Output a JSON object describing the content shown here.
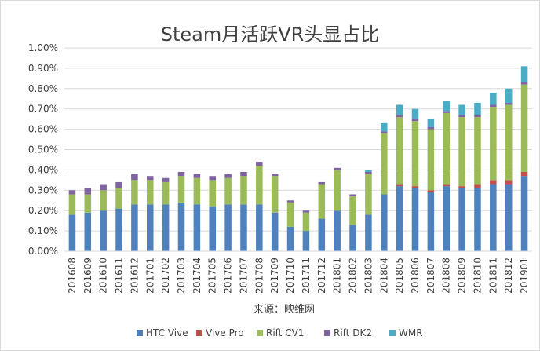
{
  "chart_data": {
    "type": "bar",
    "stacked": true,
    "title": "Steam月活跃VR头显占比",
    "source": "来源：映维网",
    "xlabel": "",
    "ylabel": "",
    "ylim": [
      0,
      1.0
    ],
    "yticks": [
      "0.00%",
      "0.10%",
      "0.20%",
      "0.30%",
      "0.40%",
      "0.50%",
      "0.60%",
      "0.70%",
      "0.80%",
      "0.90%",
      "1.00%"
    ],
    "grid": true,
    "legend_position": "bottom",
    "categories": [
      "201608",
      "201609",
      "201610",
      "201611",
      "201612",
      "201701",
      "201702",
      "201703",
      "201704",
      "201705",
      "201706",
      "201707",
      "201708",
      "201709",
      "201710",
      "201711",
      "201712",
      "201801",
      "201802",
      "201803",
      "201804",
      "201805",
      "201806",
      "201807",
      "201808",
      "201809",
      "201810",
      "201811",
      "201812",
      "201901"
    ],
    "series": [
      {
        "name": "HTC Vive",
        "color": "#4f81bd",
        "values": [
          0.18,
          0.19,
          0.2,
          0.21,
          0.23,
          0.23,
          0.23,
          0.24,
          0.23,
          0.22,
          0.23,
          0.23,
          0.23,
          0.19,
          0.12,
          0.1,
          0.16,
          0.2,
          0.13,
          0.18,
          0.28,
          0.32,
          0.31,
          0.29,
          0.32,
          0.31,
          0.31,
          0.33,
          0.33,
          0.37
        ]
      },
      {
        "name": "Vive Pro",
        "color": "#c0504d",
        "values": [
          0,
          0,
          0,
          0,
          0,
          0,
          0,
          0,
          0,
          0,
          0,
          0,
          0,
          0,
          0,
          0,
          0,
          0,
          0,
          0,
          0,
          0.01,
          0.01,
          0.01,
          0.01,
          0.01,
          0.02,
          0.02,
          0.02,
          0.02
        ]
      },
      {
        "name": "Rift CV1",
        "color": "#9bbb59",
        "values": [
          0.1,
          0.09,
          0.1,
          0.1,
          0.12,
          0.12,
          0.11,
          0.13,
          0.13,
          0.13,
          0.13,
          0.14,
          0.19,
          0.18,
          0.12,
          0.09,
          0.17,
          0.2,
          0.14,
          0.2,
          0.3,
          0.33,
          0.32,
          0.3,
          0.35,
          0.34,
          0.33,
          0.36,
          0.37,
          0.43
        ]
      },
      {
        "name": "Rift DK2",
        "color": "#8064a2",
        "values": [
          0.02,
          0.03,
          0.03,
          0.03,
          0.03,
          0.02,
          0.02,
          0.02,
          0.02,
          0.02,
          0.02,
          0.02,
          0.02,
          0.01,
          0.01,
          0.01,
          0.01,
          0.01,
          0.01,
          0.01,
          0.01,
          0.01,
          0.01,
          0.01,
          0.01,
          0.01,
          0.01,
          0.01,
          0.01,
          0.01
        ]
      },
      {
        "name": "WMR",
        "color": "#4bacc6",
        "values": [
          0,
          0,
          0,
          0,
          0,
          0,
          0,
          0,
          0,
          0,
          0,
          0,
          0,
          0,
          0,
          0,
          0,
          0,
          0,
          0.01,
          0.04,
          0.05,
          0.05,
          0.04,
          0.05,
          0.05,
          0.06,
          0.06,
          0.07,
          0.08
        ]
      }
    ]
  }
}
